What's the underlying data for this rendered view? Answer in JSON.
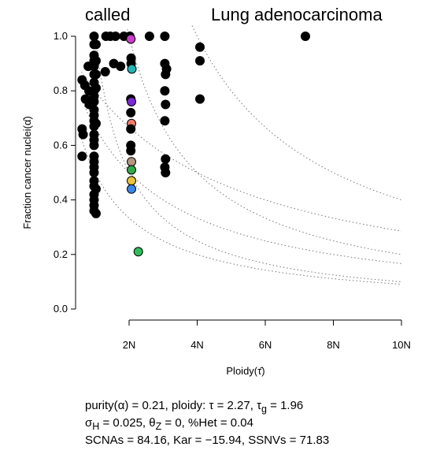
{
  "chart_data": {
    "type": "scatter",
    "title_left": "called",
    "title_right": "Lung adenocarcinoma",
    "xlabel": "Ploidy(τ̂)",
    "ylabel": "Fraction cancer nuclei(α̂)",
    "xlim": [
      0.6,
      10
    ],
    "ylim": [
      0,
      1
    ],
    "x_ticks": [
      2,
      4,
      6,
      8,
      10
    ],
    "x_tick_labels": [
      "2N",
      "4N",
      "6N",
      "8N",
      "10N"
    ],
    "y_ticks": [
      0.0,
      0.2,
      0.4,
      0.6,
      0.8,
      1.0
    ],
    "y_tick_labels": [
      "0.0",
      "0.2",
      "0.4",
      "0.6",
      "0.8",
      "1.0"
    ],
    "grid": false,
    "colors": {
      "point": "#000000",
      "selected": "#2ebd59",
      "magenta": "#cc3fcc",
      "cyan": "#22b5b5",
      "purple": "#7a2ad0",
      "salmon": "#f07b6b",
      "tan": "#b39580",
      "green": "#33a84a",
      "yellow": "#e8c23a",
      "orange": "#f59b2f",
      "blue": "#3a86e8",
      "curve": "#777777"
    },
    "points": [
      {
        "x": 0.62,
        "y": 0.84,
        "c": "point"
      },
      {
        "x": 0.62,
        "y": 0.66,
        "c": "point"
      },
      {
        "x": 0.62,
        "y": 0.56,
        "c": "point"
      },
      {
        "x": 0.65,
        "y": 0.64,
        "c": "point"
      },
      {
        "x": 0.7,
        "y": 0.82,
        "c": "point"
      },
      {
        "x": 0.72,
        "y": 0.77,
        "c": "point"
      },
      {
        "x": 0.8,
        "y": 0.89,
        "c": "point"
      },
      {
        "x": 0.82,
        "y": 0.8,
        "c": "point"
      },
      {
        "x": 0.83,
        "y": 0.75,
        "c": "point"
      },
      {
        "x": 0.97,
        "y": 1.0,
        "c": "point"
      },
      {
        "x": 0.97,
        "y": 0.97,
        "c": "point"
      },
      {
        "x": 0.97,
        "y": 0.93,
        "c": "point"
      },
      {
        "x": 0.97,
        "y": 0.91,
        "c": "point"
      },
      {
        "x": 0.97,
        "y": 0.89,
        "c": "point"
      },
      {
        "x": 0.97,
        "y": 0.86,
        "c": "point"
      },
      {
        "x": 0.97,
        "y": 0.83,
        "c": "point"
      },
      {
        "x": 0.97,
        "y": 0.8,
        "c": "point"
      },
      {
        "x": 0.97,
        "y": 0.78,
        "c": "point"
      },
      {
        "x": 0.97,
        "y": 0.76,
        "c": "point"
      },
      {
        "x": 0.97,
        "y": 0.73,
        "c": "point"
      },
      {
        "x": 0.97,
        "y": 0.71,
        "c": "point"
      },
      {
        "x": 0.97,
        "y": 0.69,
        "c": "point"
      },
      {
        "x": 0.97,
        "y": 0.67,
        "c": "point"
      },
      {
        "x": 0.97,
        "y": 0.64,
        "c": "point"
      },
      {
        "x": 0.97,
        "y": 0.62,
        "c": "point"
      },
      {
        "x": 0.97,
        "y": 0.6,
        "c": "point"
      },
      {
        "x": 0.97,
        "y": 0.56,
        "c": "point"
      },
      {
        "x": 0.97,
        "y": 0.54,
        "c": "point"
      },
      {
        "x": 0.97,
        "y": 0.52,
        "c": "point"
      },
      {
        "x": 0.97,
        "y": 0.5,
        "c": "point"
      },
      {
        "x": 0.97,
        "y": 0.47,
        "c": "point"
      },
      {
        "x": 0.97,
        "y": 0.45,
        "c": "point"
      },
      {
        "x": 0.97,
        "y": 0.42,
        "c": "point"
      },
      {
        "x": 0.97,
        "y": 0.4,
        "c": "point"
      },
      {
        "x": 0.97,
        "y": 0.38,
        "c": "point"
      },
      {
        "x": 0.97,
        "y": 0.36,
        "c": "point"
      },
      {
        "x": 1.03,
        "y": 0.97,
        "c": "point"
      },
      {
        "x": 1.03,
        "y": 0.91,
        "c": "point"
      },
      {
        "x": 1.03,
        "y": 0.86,
        "c": "point"
      },
      {
        "x": 1.03,
        "y": 0.81,
        "c": "point"
      },
      {
        "x": 1.03,
        "y": 0.68,
        "c": "point"
      },
      {
        "x": 1.03,
        "y": 0.44,
        "c": "point"
      },
      {
        "x": 1.03,
        "y": 0.35,
        "c": "point"
      },
      {
        "x": 1.3,
        "y": 0.87,
        "c": "point"
      },
      {
        "x": 1.32,
        "y": 1.0,
        "c": "point"
      },
      {
        "x": 1.45,
        "y": 1.0,
        "c": "point"
      },
      {
        "x": 1.55,
        "y": 0.9,
        "c": "point"
      },
      {
        "x": 1.6,
        "y": 1.0,
        "c": "point"
      },
      {
        "x": 1.75,
        "y": 0.89,
        "c": "point"
      },
      {
        "x": 1.85,
        "y": 1.0,
        "c": "point"
      },
      {
        "x": 2.02,
        "y": 1.0,
        "c": "point"
      },
      {
        "x": 2.05,
        "y": 0.99,
        "c": "magenta"
      },
      {
        "x": 2.06,
        "y": 0.92,
        "c": "point"
      },
      {
        "x": 2.06,
        "y": 0.9,
        "c": "point"
      },
      {
        "x": 2.08,
        "y": 0.88,
        "c": "cyan"
      },
      {
        "x": 2.05,
        "y": 0.77,
        "c": "point"
      },
      {
        "x": 2.07,
        "y": 0.76,
        "c": "purple"
      },
      {
        "x": 2.05,
        "y": 0.72,
        "c": "point"
      },
      {
        "x": 2.07,
        "y": 0.68,
        "c": "salmon"
      },
      {
        "x": 2.05,
        "y": 0.66,
        "c": "point"
      },
      {
        "x": 2.05,
        "y": 0.6,
        "c": "point"
      },
      {
        "x": 2.05,
        "y": 0.58,
        "c": "point"
      },
      {
        "x": 2.07,
        "y": 0.54,
        "c": "tan"
      },
      {
        "x": 2.07,
        "y": 0.51,
        "c": "green"
      },
      {
        "x": 2.07,
        "y": 0.47,
        "c": "yellow"
      },
      {
        "x": 2.07,
        "y": 0.44,
        "c": "blue"
      },
      {
        "x": 2.27,
        "y": 0.21,
        "c": "selected"
      },
      {
        "x": 2.6,
        "y": 1.0,
        "c": "point"
      },
      {
        "x": 3.05,
        "y": 1.0,
        "c": "point"
      },
      {
        "x": 3.05,
        "y": 0.9,
        "c": "point"
      },
      {
        "x": 3.1,
        "y": 0.88,
        "c": "point"
      },
      {
        "x": 3.07,
        "y": 0.86,
        "c": "point"
      },
      {
        "x": 3.05,
        "y": 0.8,
        "c": "point"
      },
      {
        "x": 3.07,
        "y": 0.75,
        "c": "point"
      },
      {
        "x": 3.05,
        "y": 0.69,
        "c": "point"
      },
      {
        "x": 3.07,
        "y": 0.55,
        "c": "point"
      },
      {
        "x": 3.05,
        "y": 0.52,
        "c": "point"
      },
      {
        "x": 3.07,
        "y": 0.5,
        "c": "point"
      },
      {
        "x": 4.08,
        "y": 0.96,
        "c": "point"
      },
      {
        "x": 4.08,
        "y": 0.91,
        "c": "point"
      },
      {
        "x": 4.08,
        "y": 0.77,
        "c": "point"
      },
      {
        "x": 7.18,
        "y": 1.0,
        "c": "point"
      }
    ],
    "curves": [
      {
        "z": 1,
        "q": 2
      },
      {
        "z": 2,
        "q": 2
      },
      {
        "z": 1,
        "q": 0
      },
      {
        "z": 2,
        "q": 0
      },
      {
        "z": 0.5,
        "q": 2
      },
      {
        "z": 0.5,
        "q": 0
      }
    ]
  },
  "stats": {
    "line1_a": "purity(",
    "line1_alpha": "α",
    "line1_b": ") = 0",
    "line1_c": "21, ploidy: ",
    "line1_tau": "τ",
    "line1_d": " = 2.27, ",
    "line1_taug": "τ",
    "line1_g": "g",
    "line1_e": " = 1.96",
    "line2_sigma": "σ",
    "line2_h": "H",
    "line2_a": " = 0.025, ",
    "line2_theta": "θ",
    "line2_z": "Z",
    "line2_b": " = 0, %Het = 0.04",
    "line3": "SCNAs = 84.16, Kar = −15.94, SSNVs = 71.83"
  }
}
